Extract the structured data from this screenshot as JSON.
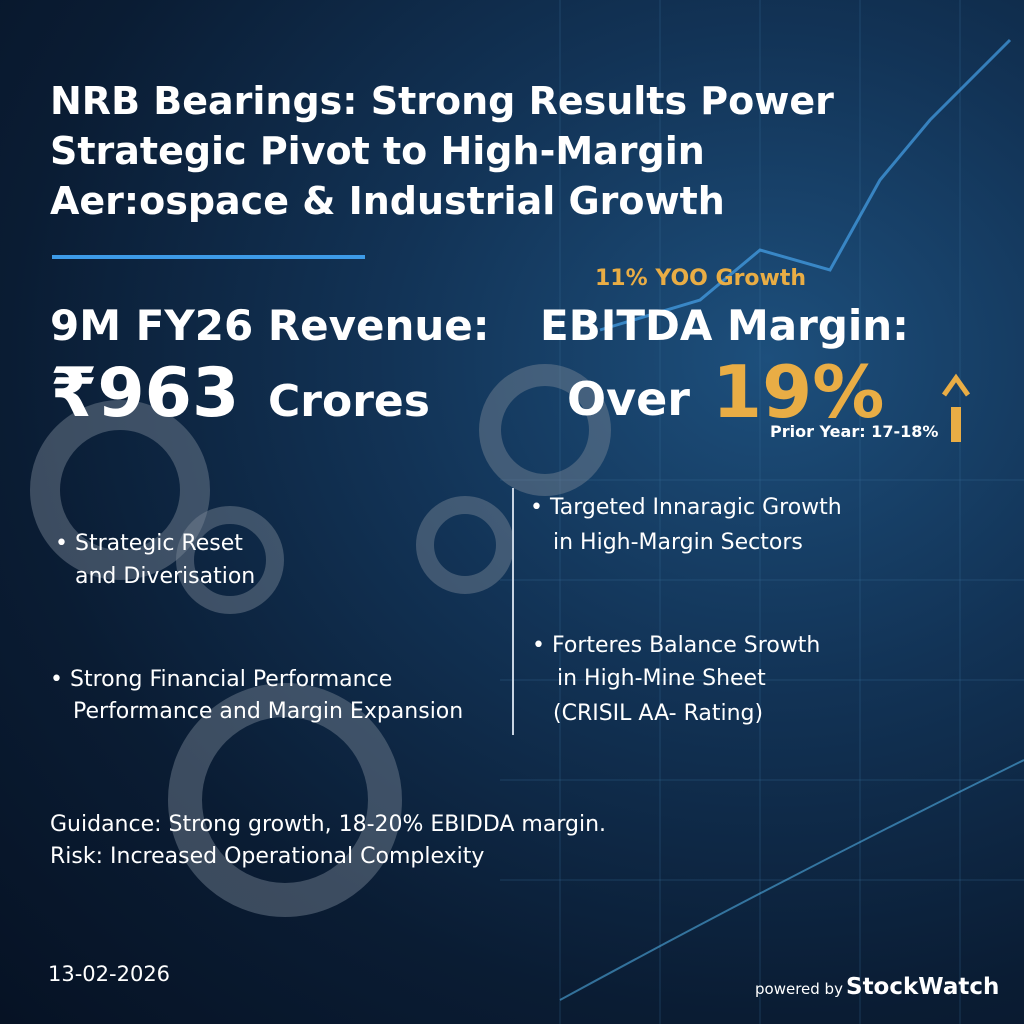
{
  "header": {
    "title_lines": [
      "NRB Bearings: Strong Results Power",
      "Strategic Pivot to High-Margin",
      "Aer:ospace & Industrial Growth"
    ]
  },
  "revenue": {
    "label": "9M FY26 Revenue:",
    "value": "₹963",
    "unit": "Crores"
  },
  "ebitda": {
    "growth": "11% YOO Growth",
    "label": "EBITDA Margin:",
    "prefix": "Over",
    "value": "19%",
    "prior": "Prior Year: 17-18%"
  },
  "bullets_left": [
    [
      "Strategic Reset",
      "and Diverisation"
    ],
    [
      "Strong Financial Performance",
      "Performance and Margin Expansion"
    ]
  ],
  "bullets_right": [
    [
      "Targeted Innaragic Growth",
      "in High-Margin Sectors"
    ],
    [
      "Forteres Balance Srowth",
      "in High-Mine Sheet",
      "(CRISIL AA- Rating)"
    ]
  ],
  "footer": {
    "guidance": "Guidance: Strong growth, 18-20% EBIDDA margin.",
    "risk": "Risk: Increased Operational Complexity",
    "date": "13-02-2026",
    "powered_by": "powered by",
    "brand": "StockWatch"
  }
}
